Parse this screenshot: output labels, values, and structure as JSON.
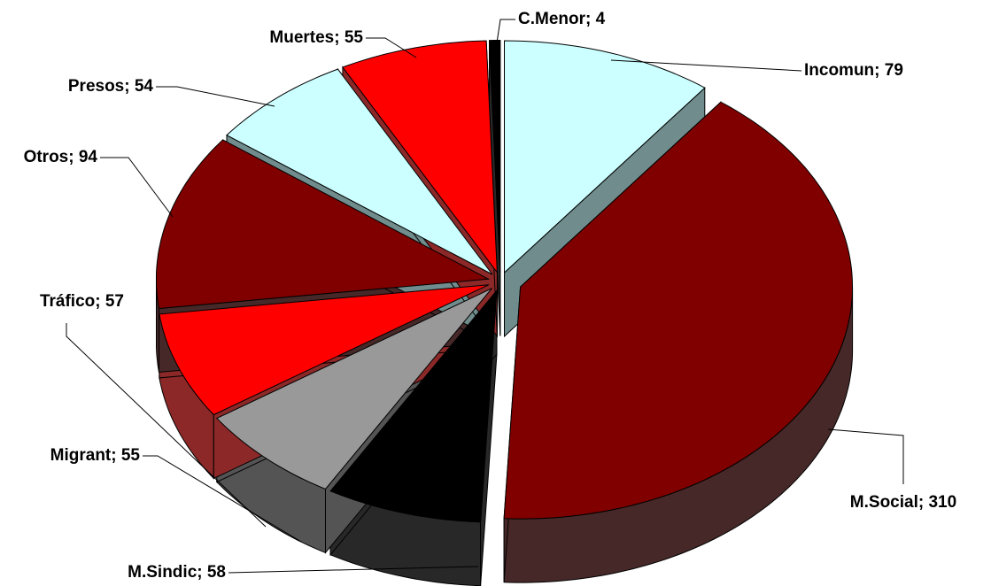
{
  "chart_data": {
    "type": "pie3d",
    "categories": [
      "Incomun",
      "M.Social",
      "M.Sindic",
      "Migrant",
      "Tráfico",
      "Otros",
      "Presos",
      "Muertes",
      "C.Menor"
    ],
    "values": [
      79,
      310,
      58,
      55,
      57,
      94,
      54,
      55,
      4
    ],
    "value_labels": [
      "Incomun; 79",
      "M.Social; 310",
      "M.Sindic; 58",
      "Migrant; 55",
      "Tráfico; 57",
      "Otros; 94",
      "Presos; 54",
      "Muertes; 55",
      "C.Menor; 4"
    ],
    "colors": [
      "#ccffff",
      "#800000",
      "#000000",
      "#999999",
      "#ff0000",
      "#800000",
      "#ccffff",
      "#ff0000",
      "#000000"
    ]
  }
}
